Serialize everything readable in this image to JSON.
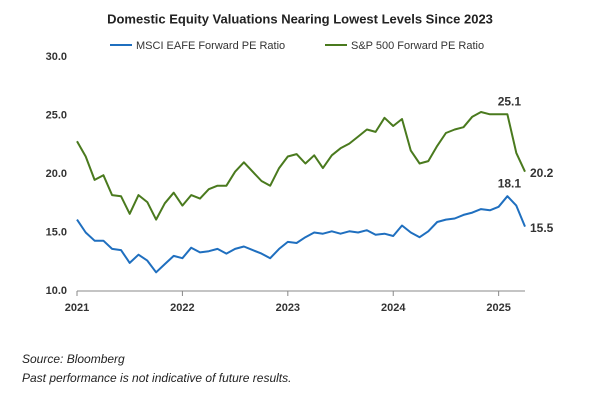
{
  "chart_data": {
    "type": "line",
    "title": "Domestic Equity Valuations Nearing Lowest Levels Since 2023",
    "x": [
      2021.0,
      2021.083,
      2021.167,
      2021.25,
      2021.333,
      2021.417,
      2021.5,
      2021.583,
      2021.667,
      2021.75,
      2021.833,
      2021.917,
      2022.0,
      2022.083,
      2022.167,
      2022.25,
      2022.333,
      2022.417,
      2022.5,
      2022.583,
      2022.667,
      2022.75,
      2022.833,
      2022.917,
      2023.0,
      2023.083,
      2023.167,
      2023.25,
      2023.333,
      2023.417,
      2023.5,
      2023.583,
      2023.667,
      2023.75,
      2023.833,
      2023.917,
      2024.0,
      2024.083,
      2024.167,
      2024.25,
      2024.333,
      2024.417,
      2024.5,
      2024.583,
      2024.667,
      2024.75,
      2024.833,
      2024.917,
      2025.0,
      2025.083,
      2025.167,
      2025.25
    ],
    "series": [
      {
        "name": "MSCI EAFE Forward PE Ratio",
        "color": "#1f6fbf",
        "values": [
          16.1,
          15.0,
          14.3,
          14.3,
          13.6,
          13.5,
          12.4,
          13.1,
          12.6,
          11.6,
          12.3,
          13.0,
          12.8,
          13.7,
          13.3,
          13.4,
          13.6,
          13.2,
          13.6,
          13.8,
          13.5,
          13.2,
          12.8,
          13.6,
          14.2,
          14.1,
          14.6,
          15.0,
          14.9,
          15.1,
          14.9,
          15.1,
          15.0,
          15.2,
          14.8,
          14.9,
          14.7,
          15.6,
          15.0,
          14.6,
          15.1,
          15.9,
          16.1,
          16.2,
          16.5,
          16.7,
          17.0,
          16.9,
          17.2,
          18.1,
          17.3,
          15.5
        ],
        "value_labels": [
          null,
          null,
          null,
          null,
          null,
          null,
          null,
          null,
          null,
          null,
          null,
          null,
          null,
          null,
          null,
          null,
          null,
          null,
          null,
          null,
          null,
          null,
          null,
          null,
          null,
          null,
          null,
          null,
          null,
          null,
          null,
          null,
          null,
          null,
          null,
          null,
          null,
          null,
          null,
          null,
          null,
          null,
          null,
          null,
          null,
          null,
          null,
          null,
          null,
          "18.1",
          null,
          "15.5"
        ]
      },
      {
        "name": "S&P 500 Forward PE Ratio",
        "color": "#4a7a1e",
        "values": [
          22.8,
          21.5,
          19.5,
          19.9,
          18.2,
          18.1,
          16.6,
          18.2,
          17.6,
          16.1,
          17.5,
          18.4,
          17.3,
          18.2,
          17.9,
          18.7,
          19.0,
          19.0,
          20.2,
          21.0,
          20.2,
          19.4,
          19.0,
          20.5,
          21.5,
          21.7,
          20.9,
          21.6,
          20.5,
          21.6,
          22.2,
          22.6,
          23.2,
          23.8,
          23.6,
          24.8,
          24.1,
          24.7,
          22.0,
          20.9,
          21.1,
          22.4,
          23.5,
          23.8,
          24.0,
          24.9,
          25.3,
          25.1,
          25.1,
          25.1,
          21.8,
          20.2
        ],
        "value_labels": [
          null,
          null,
          null,
          null,
          null,
          null,
          null,
          null,
          null,
          null,
          null,
          null,
          null,
          null,
          null,
          null,
          null,
          null,
          null,
          null,
          null,
          null,
          null,
          null,
          null,
          null,
          null,
          null,
          null,
          null,
          null,
          null,
          null,
          null,
          null,
          null,
          null,
          null,
          null,
          null,
          null,
          null,
          null,
          null,
          null,
          null,
          null,
          null,
          null,
          "25.1",
          null,
          "20.2"
        ]
      }
    ],
    "xlim": [
      2021.0,
      2025.25
    ],
    "xticks": [
      2021,
      2022,
      2023,
      2024,
      2025
    ],
    "ylim": [
      10,
      30
    ],
    "yticks": [
      {
        "value": 10,
        "label": "10.0"
      },
      {
        "value": 15,
        "label": "15.0"
      },
      {
        "value": 20,
        "label": "20.0"
      },
      {
        "value": 25,
        "label": "25.0"
      },
      {
        "value": 30,
        "label": "30.0"
      }
    ],
    "grid": false,
    "legend": "top",
    "source": "Source: Bloomberg",
    "note": "Past performance is not indicative of future results."
  }
}
